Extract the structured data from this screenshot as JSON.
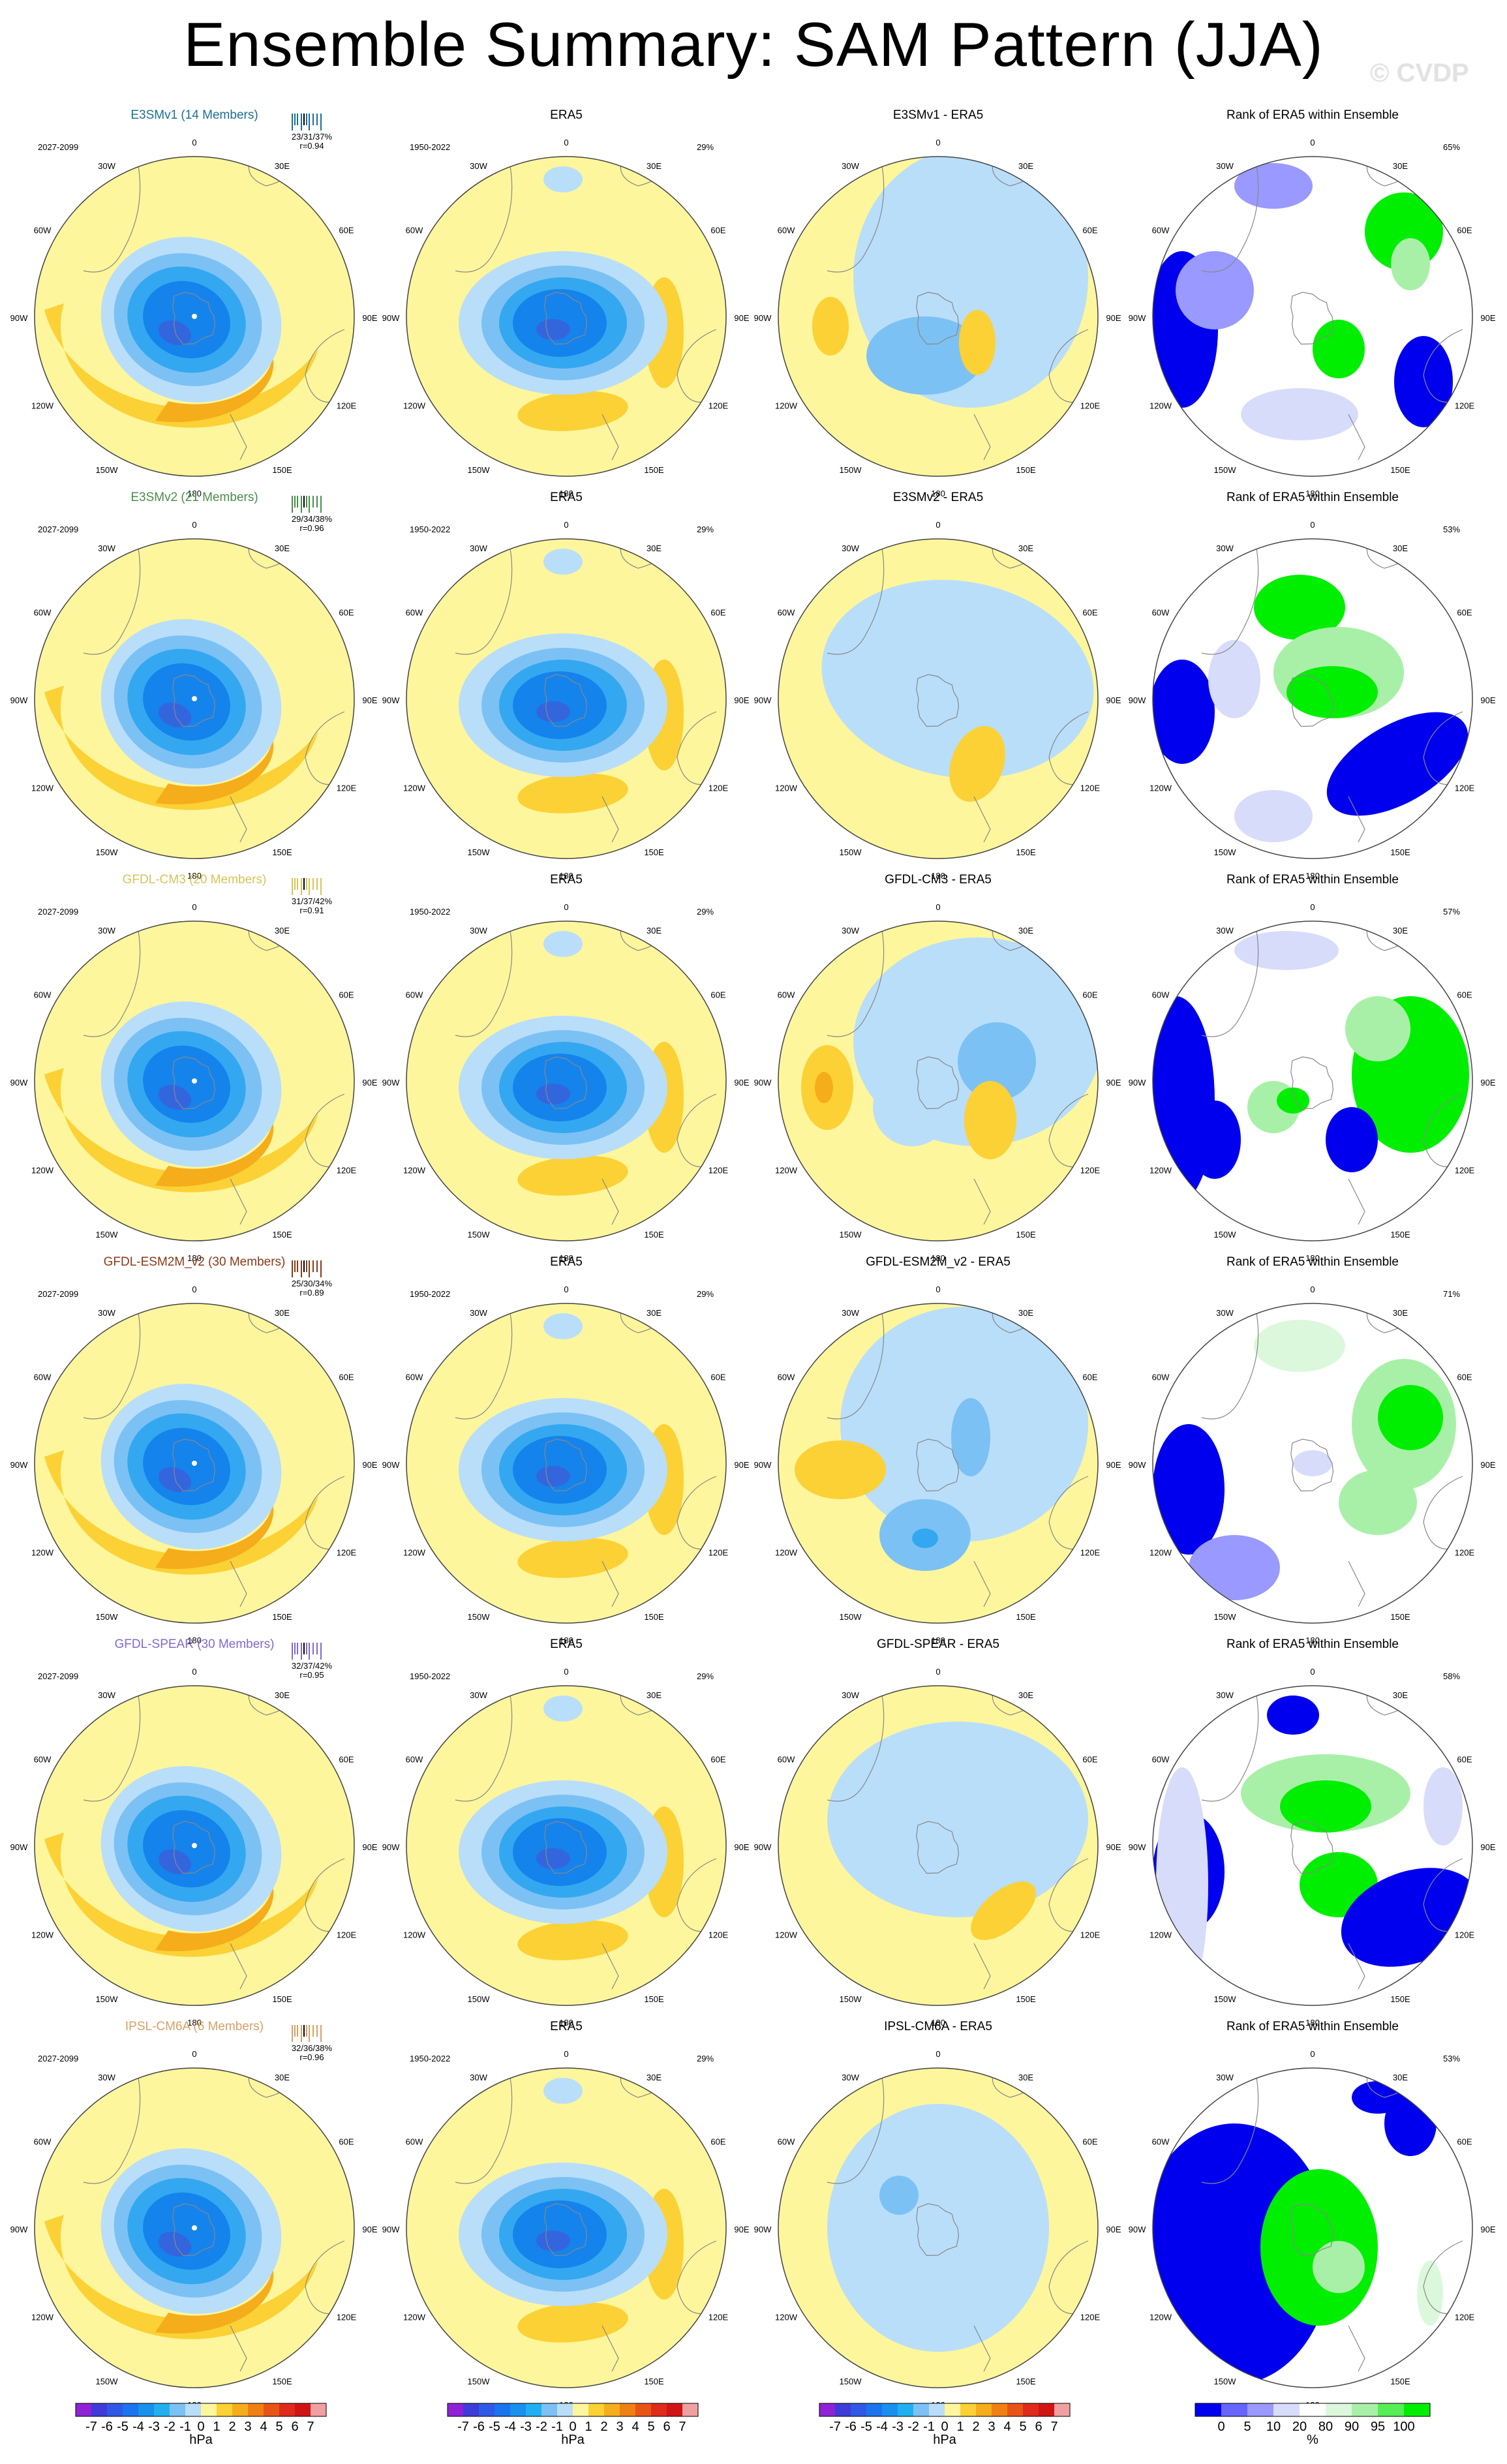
{
  "title": "Ensemble Summary: SAM Pattern (JJA)",
  "credit": "© CVDP",
  "lon_labels": [
    "0",
    "30E",
    "60E",
    "90E",
    "120E",
    "150E",
    "180",
    "150W",
    "120W",
    "90W",
    "60W",
    "30W"
  ],
  "colors": {
    "yellow": "#fef69c",
    "b1": "#b9defa",
    "b2": "#7cc1f4",
    "b3": "#33a8f0",
    "b4": "#1583ec",
    "b5": "#3366dd",
    "o1": "#fbd135",
    "o2": "#f5ad1c",
    "o3": "#ef8012",
    "rank_blue": "#0000ee",
    "rank_mid": "#9999ff",
    "rank_light": "#d8dcfb",
    "rank_green": "#00ee00",
    "rank_lgreen": "#a8f0a8",
    "rank_pale": "#dcf8dc"
  },
  "obs": {
    "name": "ERA5",
    "years": "1950-2022",
    "pct": "29%"
  },
  "rank_title": "Rank of ERA5 within Ensemble",
  "rows": [
    {
      "model": "E3SMv1 (14 Members)",
      "color": "#1c6f93",
      "years": "2027-2099",
      "stats": "23/31/37%",
      "r": "r=0.94",
      "diff": "E3SMv1 - ERA5",
      "rank_pct": "65%"
    },
    {
      "model": "E3SMv2 (21 Members)",
      "color": "#4a8d4a",
      "years": "2027-2099",
      "stats": "29/34/38%",
      "r": "r=0.96",
      "diff": "E3SMv2 - ERA5",
      "rank_pct": "53%"
    },
    {
      "model": "GFDL-CM3 (20 Members)",
      "color": "#d5c55a",
      "years": "2027-2099",
      "stats": "31/37/42%",
      "r": "r=0.91",
      "diff": "GFDL-CM3 - ERA5",
      "rank_pct": "57%"
    },
    {
      "model": "GFDL-ESM2M_v2 (30 Members)",
      "color": "#8b3a16",
      "years": "2027-2099",
      "stats": "25/30/34%",
      "r": "r=0.89",
      "diff": "GFDL-ESM2M_v2 - ERA5",
      "rank_pct": "71%"
    },
    {
      "model": "GFDL-SPEAR (30 Members)",
      "color": "#7f6ad0",
      "years": "2027-2099",
      "stats": "32/37/42%",
      "r": "r=0.95",
      "diff": "GFDL-SPEAR - ERA5",
      "rank_pct": "58%"
    },
    {
      "model": "IPSL-CM6A (6 Members)",
      "color": "#d8a066",
      "years": "2027-2099",
      "stats": "32/36/38%",
      "r": "r=0.96",
      "diff": "IPSL-CM6A - ERA5",
      "rank_pct": "53%"
    }
  ],
  "colorbar_hpa": {
    "labels": [
      "-7",
      "-6",
      "-5",
      "-4",
      "-3",
      "-2",
      "-1",
      "0",
      "1",
      "2",
      "3",
      "4",
      "5",
      "6",
      "7"
    ],
    "colors": [
      "#8f22d6",
      "#3e3bd8",
      "#2f58e6",
      "#1a74ee",
      "#1790ee",
      "#20b0f2",
      "#7cc1f4",
      "#b9defa",
      "#fef69c",
      "#fbd135",
      "#f5ad1c",
      "#ef8012",
      "#e85416",
      "#e02a1a",
      "#d01414",
      "#f0a0a0"
    ],
    "unit": "hPa"
  },
  "colorbar_rank": {
    "labels": [
      "0",
      "5",
      "10",
      "20",
      "80",
      "90",
      "95",
      "100"
    ],
    "colors": [
      "#0000ee",
      "#6666ff",
      "#9999ff",
      "#d8dcfb",
      "#ffffff",
      "#dcf8dc",
      "#a8f0a8",
      "#55ee55",
      "#00ee00"
    ],
    "unit": "%"
  }
}
